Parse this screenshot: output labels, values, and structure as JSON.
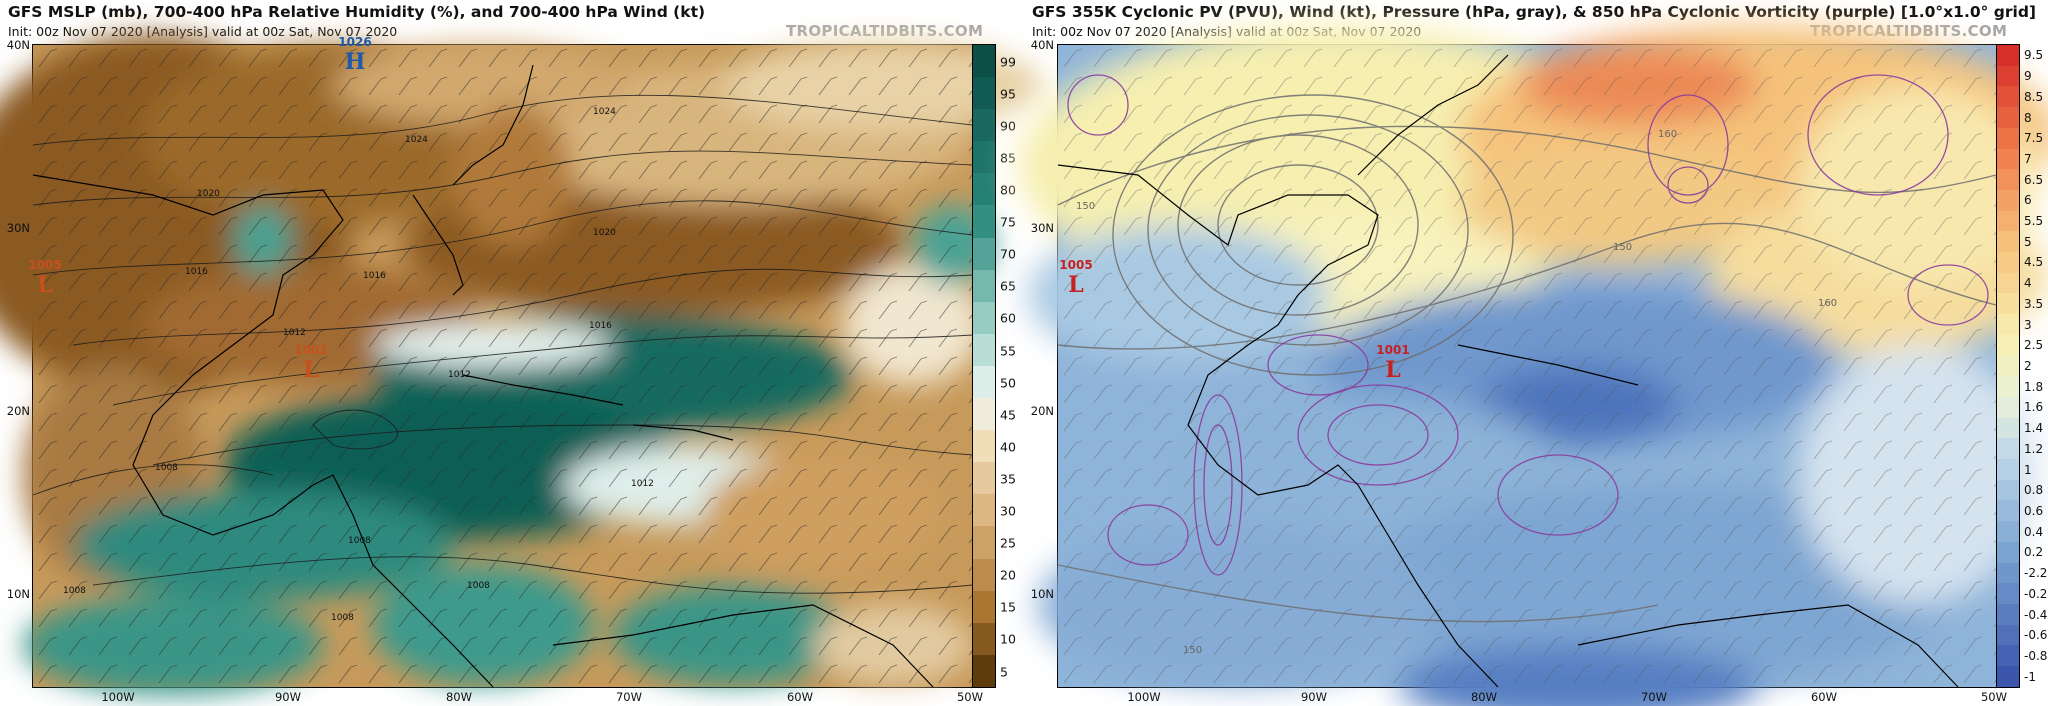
{
  "panels": [
    {
      "title": "GFS MSLP (mb), 700-400 hPa Relative Humidity (%), and 700-400 hPa Wind (kt)",
      "subtitle": "Init: 00z Nov 07 2020   [Analysis]   valid at 00z Sat, Nov 07 2020",
      "brand": "TROPICALTIDBITS.COM",
      "lat_labels": [
        "40N",
        "30N",
        "20N",
        "10N"
      ],
      "lon_labels": [
        "100W",
        "90W",
        "80W",
        "70W",
        "60W",
        "50W"
      ],
      "colorbar": [
        "99",
        "95",
        "90",
        "85",
        "80",
        "75",
        "70",
        "65",
        "60",
        "55",
        "50",
        "45",
        "40",
        "35",
        "30",
        "25",
        "20",
        "15",
        "10",
        "5"
      ],
      "contour_labels": [
        "1024",
        "1024",
        "1020",
        "1020",
        "1016",
        "1016",
        "1016",
        "1012",
        "1012",
        "1012",
        "1008",
        "1008",
        "1008",
        "1008",
        "1008"
      ],
      "centers": [
        {
          "letter": "H",
          "pressure": "1026",
          "color": "#1e5aa8"
        },
        {
          "letter": "L",
          "pressure": "1005",
          "color": "#c8501e"
        },
        {
          "letter": "L",
          "pressure": "1001",
          "color": "#c8501e"
        }
      ]
    },
    {
      "title": "GFS 355K Cyclonic PV (PVU), Wind (kt), Pressure (hPa, gray), & 850 hPa Cyclonic Vorticity (purple) [1.0°x1.0° grid]",
      "subtitle": "Init: 00z Nov 07 2020   [Analysis]   valid at 00z Sat, Nov 07 2020",
      "brand": "TROPICALTIDBITS.COM",
      "lat_labels": [
        "40N",
        "30N",
        "20N",
        "10N"
      ],
      "lon_labels": [
        "100W",
        "90W",
        "80W",
        "70W",
        "60W",
        "50W"
      ],
      "colorbar": [
        "9.5",
        "9",
        "8.5",
        "8",
        "7.5",
        "7",
        "6.5",
        "6",
        "5.5",
        "5",
        "4.5",
        "4",
        "3.5",
        "3",
        "2.5",
        "2",
        "1.8",
        "1.6",
        "1.4",
        "1.2",
        "1",
        "0.8",
        "0.6",
        "0.4",
        "0.2",
        "-2.2",
        "-0.2",
        "-0.4",
        "-0.6",
        "-0.8",
        "-1"
      ],
      "contour_labels": [
        "150",
        "150",
        "150",
        "160",
        "160"
      ],
      "centers": [
        {
          "letter": "L",
          "pressure": "1005",
          "color": "#c8201e"
        },
        {
          "letter": "L",
          "pressure": "1001",
          "color": "#c8201e"
        }
      ]
    }
  ],
  "colors": {
    "rh_dry": "#7a4a1a",
    "rh_moist": "#0f5e54",
    "pv_low": "#3c5fb0",
    "pv_high": "#d93a2a",
    "vorticity": "#8a3c9e",
    "pressure_contour": "#6e6e6e"
  }
}
